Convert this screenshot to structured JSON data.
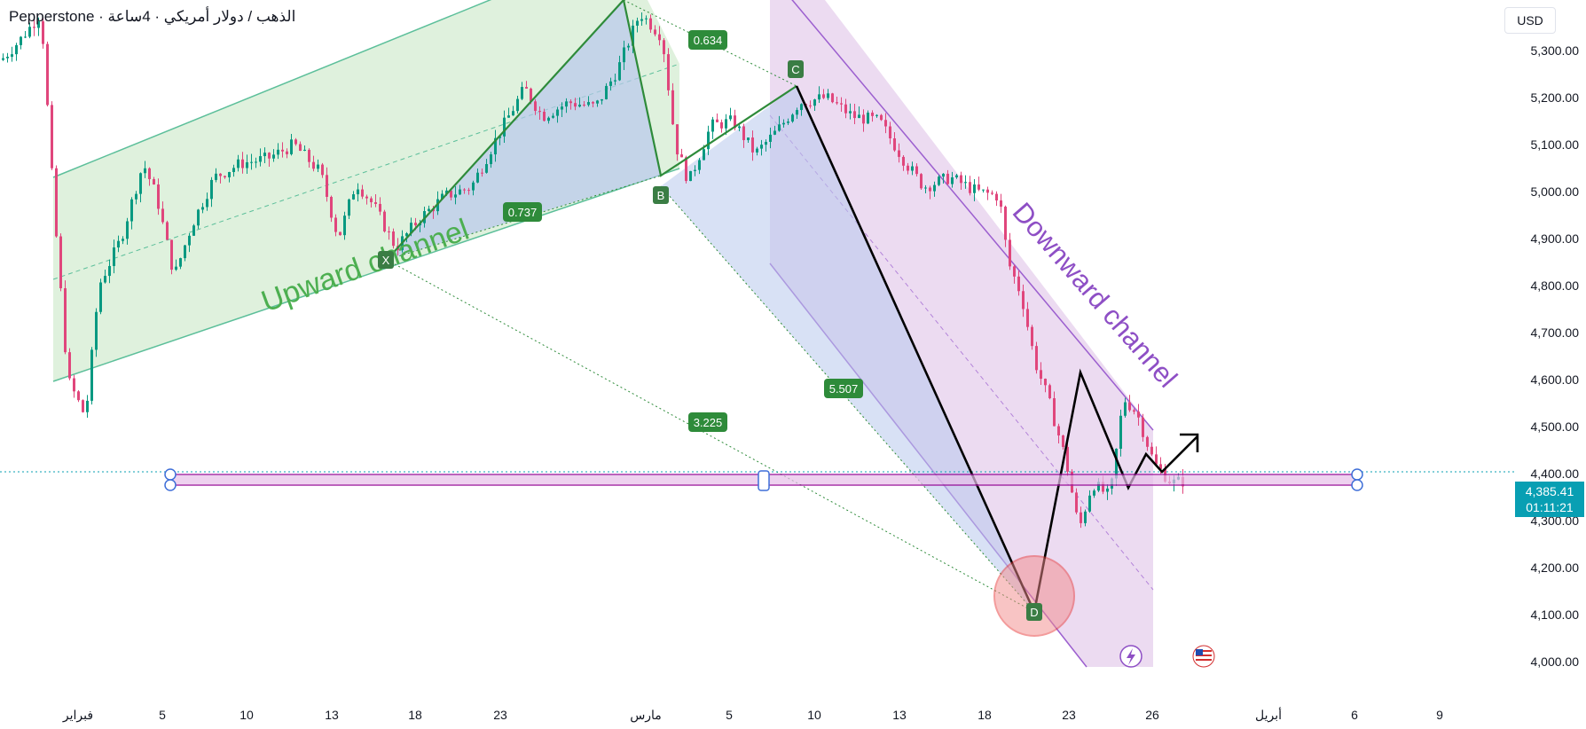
{
  "header": {
    "title": "Pepperstone · الذهب / دولار أمريكي · 4ساعة",
    "currency": "USD"
  },
  "price_axis": {
    "labels": [
      "5,300.00",
      "5,200.00",
      "5,100.00",
      "5,000.00",
      "4,900.00",
      "4,800.00",
      "4,700.00",
      "4,600.00",
      "4,500.00",
      "4,400.00",
      "4,300.00",
      "4,200.00",
      "4,100.00",
      "4,000.00"
    ],
    "current_price": "4,385.41",
    "countdown": "01:11:21"
  },
  "time_axis": {
    "labels": [
      "فبراير",
      "5",
      "10",
      "13",
      "18",
      "23",
      "مارس",
      "5",
      "10",
      "13",
      "18",
      "23",
      "26",
      "أبريل",
      "6",
      "9"
    ]
  },
  "drawings": {
    "upward_channel_label": "Upward channel",
    "downward_channel_label": "Downward channel",
    "ratio_labels": [
      "0.634",
      "0.737",
      "3.225",
      "5.507"
    ],
    "pattern_points": [
      "X",
      "B",
      "C",
      "D"
    ]
  },
  "colors": {
    "up_candle": "#089981",
    "down_candle": "#e0467c",
    "up_channel_fill": "#d9eed7",
    "up_channel_line": "#5cbf9a",
    "down_channel_fill": "#e9d5ee",
    "down_channel_line": "#9c5fcf",
    "pattern_fill": "#b8c8ec",
    "pattern_line": "#2e8b3a",
    "price_line": "#089fb3",
    "zone_line": "#a020a0"
  },
  "chart_data": {
    "type": "candlestick",
    "instrument": "Gold / USD, 4H",
    "ylim": [
      3950,
      5400
    ],
    "key_levels": [
      {
        "price": 4385.41,
        "label": "current price"
      }
    ],
    "pattern_points_price": {
      "X": 4860,
      "A": 5440,
      "B": 5020,
      "C": 5225,
      "D": 4090
    },
    "ratios": {
      "AB/XA": 0.634,
      "XB": 0.737,
      "XD": 3.225,
      "BC": 5.507
    }
  }
}
